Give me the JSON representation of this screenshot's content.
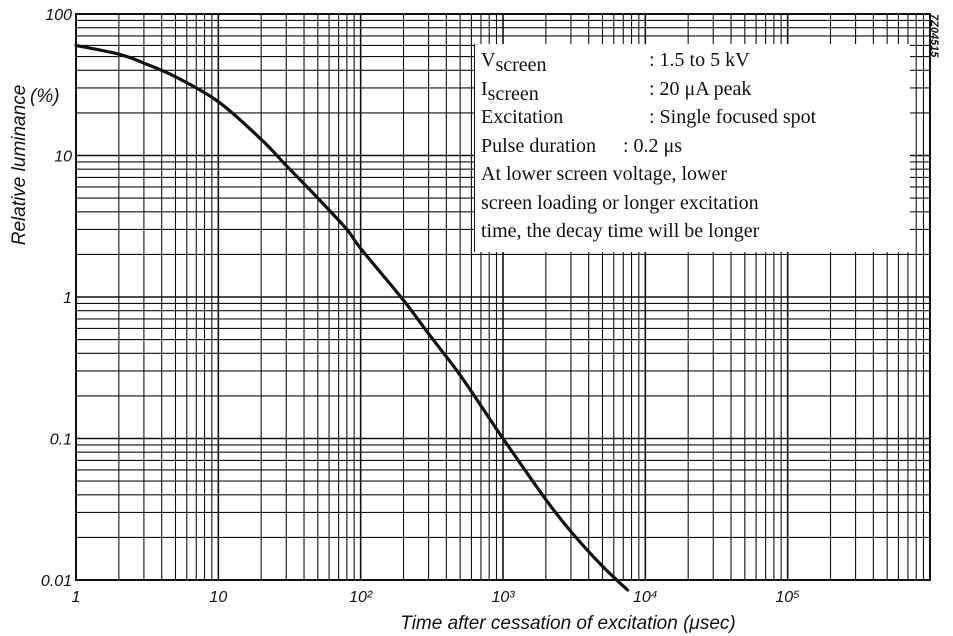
{
  "chart_data": {
    "type": "line",
    "title": "",
    "xlabel": "Time after cessation of excitation (μsec)",
    "ylabel": "Relative luminance",
    "ylabel_unit": "(%)",
    "x_scale": "log",
    "y_scale": "log",
    "xlim": [
      1,
      1000000
    ],
    "ylim": [
      0.01,
      100
    ],
    "grid": true,
    "x_tick_labels": [
      "1",
      "10",
      "10²",
      "10³",
      "10⁴",
      "10⁵"
    ],
    "y_tick_labels": [
      "100",
      "10",
      "1",
      "0.1",
      "0.01"
    ],
    "series": [
      {
        "x": [
          1,
          2,
          3,
          5,
          10,
          20,
          30,
          50,
          80,
          100,
          200,
          300,
          500,
          1000,
          2000,
          3000,
          5000,
          7500
        ],
        "y": [
          60,
          52,
          45,
          36,
          24,
          13,
          8.5,
          5,
          3,
          2.2,
          0.95,
          0.55,
          0.28,
          0.1,
          0.037,
          0.022,
          0.0125,
          0.0085
        ]
      }
    ],
    "side_code": "7Z04515"
  },
  "legend": {
    "rows": [
      {
        "key": "V",
        "key_sub": "screen",
        "value": ": 1.5 to 5 kV"
      },
      {
        "key": "I",
        "key_sub": "screen",
        "value": ": 20 μA peak"
      },
      {
        "key": "Excitation",
        "key_sub": "",
        "value": ": Single focused spot"
      },
      {
        "key": "Pulse duration",
        "key_sub": "",
        "value": ": 0.2 μs"
      }
    ],
    "note_lines": [
      "At lower screen voltage, lower",
      "screen loading or longer excitation",
      "time, the decay time will be longer"
    ]
  },
  "colors": {
    "ink": "#111111",
    "background": "#ffffff"
  }
}
